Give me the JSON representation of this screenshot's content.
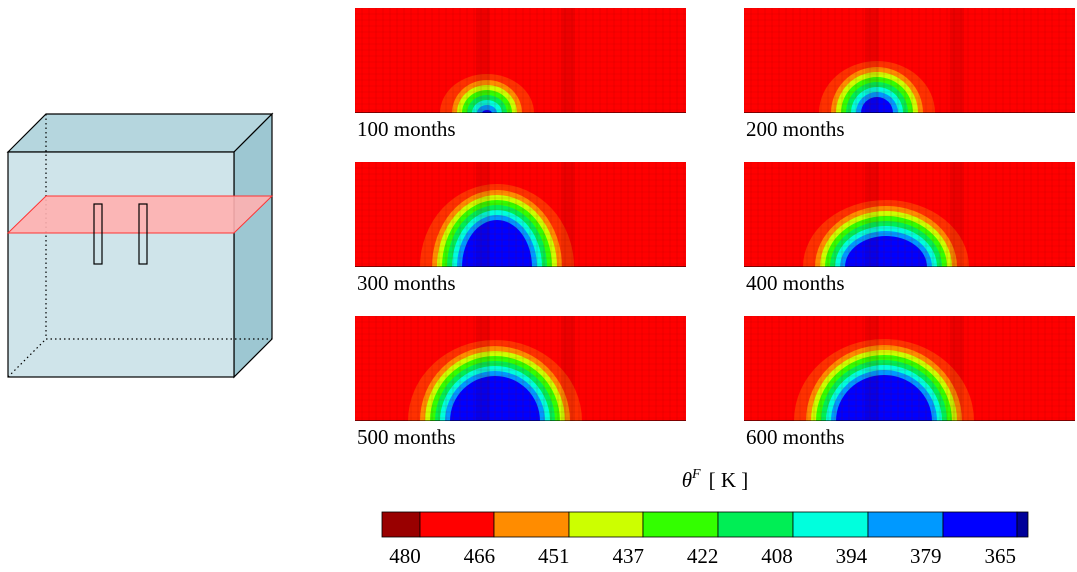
{
  "panels": [
    {
      "label": "100 months"
    },
    {
      "label": "200 months"
    },
    {
      "label": "300 months"
    },
    {
      "label": "400 months"
    },
    {
      "label": "500 months"
    },
    {
      "label": "600 months"
    }
  ],
  "colorbar": {
    "title": {
      "symbol": "θ",
      "superscript": "F",
      "unit": "[ K ]"
    },
    "colors": [
      "#990000",
      "#ff0000",
      "#ff8c00",
      "#ccff00",
      "#33ff00",
      "#00ee55",
      "#00ffdd",
      "#0099ff",
      "#0000ff",
      "#000099"
    ],
    "labels": [
      "480",
      "466",
      "451",
      "437",
      "422",
      "408",
      "394",
      "379",
      "365"
    ]
  }
}
